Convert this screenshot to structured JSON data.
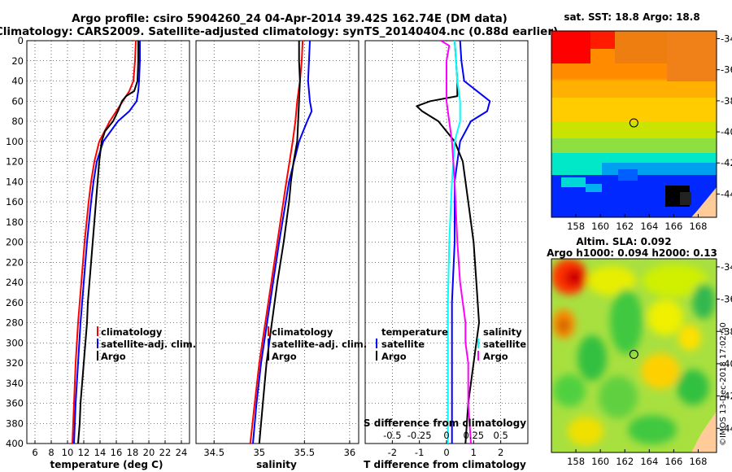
{
  "title": {
    "line1": "Argo profile: csiro 5904260_24 04-Apr-2014 39.42S 162.74E (DM data)",
    "line2": "Climatology: CARS2009. Satellite-adjusted climatology: synTS_20140404.nc (0.88d earlier)"
  },
  "colors": {
    "clim": "#ff0000",
    "sat": "#0000ff",
    "argo": "#000000",
    "sat_s": "#00ffff",
    "argo_s": "#ff00ff"
  },
  "chart_data": [
    {
      "type": "line",
      "id": "temperature",
      "xlabel": "temperature (deg C)",
      "ylabel": "",
      "xlim": [
        5,
        25
      ],
      "ylim": [
        400,
        0
      ],
      "xticks": [
        "6",
        "8",
        "10",
        "12",
        "14",
        "16",
        "18",
        "20",
        "22",
        "24"
      ],
      "xtick_values": [
        6,
        8,
        10,
        12,
        14,
        16,
        18,
        20,
        22,
        24
      ],
      "yticks": [
        "0",
        "20",
        "40",
        "60",
        "80",
        "100",
        "120",
        "140",
        "160",
        "180",
        "200",
        "220",
        "240",
        "260",
        "280",
        "300",
        "320",
        "340",
        "360",
        "380",
        "400"
      ],
      "ytick_values": [
        0,
        20,
        40,
        60,
        80,
        100,
        120,
        140,
        160,
        180,
        200,
        220,
        240,
        260,
        280,
        300,
        320,
        340,
        360,
        380,
        400
      ],
      "legend": [
        "climatology",
        "satellite-adj. clim.",
        "Argo"
      ],
      "series": [
        {
          "name": "climatology",
          "depth": [
            0,
            20,
            40,
            50,
            60,
            80,
            100,
            120,
            140,
            160,
            200,
            240,
            280,
            320,
            360,
            400
          ],
          "values": [
            18.4,
            18.3,
            18.1,
            17.6,
            16.8,
            15.2,
            13.9,
            13.3,
            12.9,
            12.6,
            12.1,
            11.7,
            11.3,
            11.0,
            10.8,
            10.6
          ]
        },
        {
          "name": "satellite-adj. clim.",
          "depth": [
            0,
            20,
            40,
            50,
            60,
            70,
            80,
            100,
            120,
            140,
            160,
            200,
            240,
            280,
            320,
            360,
            400
          ],
          "values": [
            18.9,
            18.9,
            18.8,
            18.7,
            18.5,
            17.6,
            16.2,
            14.4,
            13.6,
            13.2,
            12.9,
            12.4,
            12.0,
            11.6,
            11.3,
            11.0,
            10.8
          ]
        },
        {
          "name": "Argo",
          "depth": [
            0,
            20,
            40,
            50,
            55,
            60,
            70,
            80,
            90,
            100,
            120,
            140,
            160,
            180,
            200,
            220,
            240,
            260,
            280,
            300,
            320,
            340,
            360,
            380,
            400
          ],
          "values": [
            18.7,
            18.7,
            18.6,
            18.2,
            17.2,
            16.7,
            16.2,
            15.6,
            14.6,
            14.2,
            13.9,
            13.7,
            13.5,
            13.3,
            13.1,
            12.9,
            12.7,
            12.5,
            12.4,
            12.2,
            12.0,
            11.8,
            11.6,
            11.5,
            11.3
          ]
        }
      ]
    },
    {
      "type": "line",
      "id": "salinity",
      "xlabel": "salinity",
      "ylabel": "",
      "xlim": [
        34.3,
        36.1
      ],
      "ylim": [
        400,
        0
      ],
      "xticks": [
        "34.5",
        "35",
        "35.5",
        "36"
      ],
      "xtick_values": [
        34.5,
        35,
        35.5,
        36
      ],
      "legend": [
        "climatology",
        "satellite-adj. clim.",
        "Argo"
      ],
      "series": [
        {
          "name": "climatology",
          "depth": [
            0,
            20,
            40,
            60,
            80,
            100,
            140,
            200,
            260,
            320,
            360,
            400
          ],
          "values": [
            35.48,
            35.47,
            35.45,
            35.42,
            35.4,
            35.37,
            35.3,
            35.2,
            35.1,
            35.0,
            34.95,
            34.9
          ]
        },
        {
          "name": "satellite-adj. clim.",
          "depth": [
            0,
            20,
            40,
            60,
            70,
            80,
            100,
            140,
            200,
            260,
            320,
            360,
            400
          ],
          "values": [
            35.56,
            35.55,
            35.54,
            35.56,
            35.58,
            35.53,
            35.44,
            35.33,
            35.22,
            35.12,
            35.02,
            34.97,
            34.93
          ]
        },
        {
          "name": "Argo",
          "depth": [
            0,
            20,
            40,
            60,
            80,
            100,
            120,
            140,
            160,
            200,
            240,
            280,
            320,
            360,
            400
          ],
          "values": [
            35.44,
            35.44,
            35.45,
            35.44,
            35.43,
            35.42,
            35.38,
            35.35,
            35.33,
            35.27,
            35.2,
            35.14,
            35.08,
            35.04,
            35.0
          ]
        }
      ]
    },
    {
      "type": "line",
      "id": "differences",
      "xlabel": "T difference from climatology",
      "xlabel_top": "S difference from climatology",
      "xlim": [
        -3,
        3
      ],
      "ylim": [
        400,
        0
      ],
      "xticks": [
        "-2",
        "-1",
        "0",
        "1",
        "2"
      ],
      "xtick_values": [
        -2,
        -1,
        0,
        1,
        2
      ],
      "s_ticks": [
        "-0.5",
        "-0.25",
        "0",
        "0.25",
        "0.5"
      ],
      "s_tick_positions": [
        -2,
        -1,
        0,
        1,
        2
      ],
      "legend_t": {
        "title": "temperature",
        "items": [
          "satellite",
          "Argo"
        ]
      },
      "legend_s": {
        "title": "salinity",
        "items": [
          "satellite",
          "Argo"
        ]
      },
      "series": [
        {
          "name": "T satellite",
          "depth": [
            0,
            20,
            40,
            60,
            70,
            80,
            100,
            140,
            200,
            260,
            320,
            360,
            400
          ],
          "values": [
            0.5,
            0.55,
            0.65,
            1.6,
            1.5,
            0.9,
            0.5,
            0.3,
            0.3,
            0.2,
            0.2,
            0.2,
            0.2
          ]
        },
        {
          "name": "T Argo",
          "depth": [
            0,
            20,
            40,
            55,
            60,
            65,
            70,
            80,
            100,
            120,
            160,
            200,
            240,
            280,
            320,
            360,
            400
          ],
          "values": [
            0.3,
            0.35,
            0.4,
            0.4,
            -0.6,
            -1.1,
            -0.9,
            -0.3,
            0.3,
            0.6,
            0.8,
            1.0,
            1.1,
            1.2,
            1.0,
            0.8,
            0.7
          ]
        },
        {
          "name": "S satellite",
          "depth": [
            0,
            20,
            40,
            60,
            80,
            100,
            140,
            200,
            260,
            320,
            360,
            400
          ],
          "values": [
            0.3,
            0.35,
            0.4,
            0.5,
            0.5,
            0.3,
            0.2,
            0.1,
            0.05,
            0.05,
            0.05,
            0.05
          ]
        },
        {
          "name": "S Argo",
          "depth": [
            0,
            5,
            20,
            40,
            60,
            80,
            100,
            140,
            200,
            240,
            280,
            300,
            320,
            360,
            400
          ],
          "values": [
            -0.2,
            0.1,
            0.0,
            0.0,
            0.0,
            0.1,
            0.2,
            0.3,
            0.4,
            0.5,
            0.7,
            0.7,
            0.8,
            0.8,
            0.9
          ]
        }
      ]
    },
    {
      "type": "heatmap",
      "id": "sst_map",
      "title": "sat. SST: 18.8 Argo: 18.8",
      "xticks": [
        "158",
        "160",
        "162",
        "164",
        "166",
        "168"
      ],
      "yticks": [
        "-34",
        "-36",
        "-38",
        "-40",
        "-42",
        "-44"
      ],
      "xlim": [
        156,
        169.5
      ],
      "ylim": [
        -45.5,
        -33.5
      ],
      "argo_position": {
        "lon": 162.74,
        "lat": -39.42
      }
    },
    {
      "type": "heatmap",
      "id": "sla_map",
      "title1": "Altim. SLA: 0.092",
      "title2": "Argo h1000: 0.094 h2000: 0.13",
      "xticks": [
        "158",
        "160",
        "162",
        "164",
        "166",
        "168"
      ],
      "yticks": [
        "-34",
        "-36",
        "-38",
        "-40",
        "-42",
        "-44"
      ],
      "xlim": [
        156,
        169.5
      ],
      "ylim": [
        -45.5,
        -33.5
      ],
      "argo_position": {
        "lon": 162.74,
        "lat": -39.42
      }
    }
  ],
  "credit": "©IMOS 13-Dec-2018 17:02:50"
}
